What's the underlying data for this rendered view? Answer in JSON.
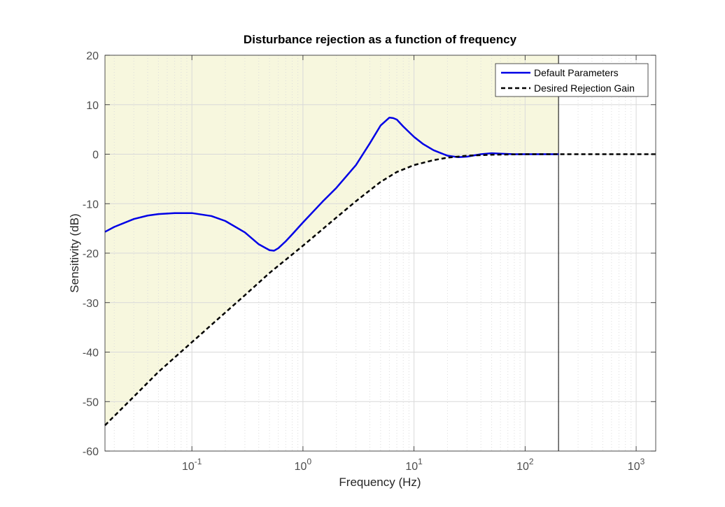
{
  "chart_data": {
    "type": "line",
    "title": "Disturbance rejection as a function of frequency",
    "xlabel": "Frequency (Hz)",
    "ylabel": "Sensitivity (dB)",
    "xscale": "log",
    "xlim": [
      0.0165,
      1500
    ],
    "ylim": [
      -60,
      20
    ],
    "yticks": [
      20,
      10,
      0,
      -10,
      -20,
      -30,
      -40,
      -50,
      -60
    ],
    "xticks": [
      {
        "value": 0.1,
        "base": "10",
        "exp": "-1"
      },
      {
        "value": 1,
        "base": "10",
        "exp": "0"
      },
      {
        "value": 10,
        "base": "10",
        "exp": "1"
      },
      {
        "value": 100,
        "base": "10",
        "exp": "2"
      },
      {
        "value": 1000,
        "base": "10",
        "exp": "3"
      }
    ],
    "grid": true,
    "legend_location": "top-right",
    "shaded_region": {
      "x_from": 0.0165,
      "x_to": 200,
      "color": "#f7f7de",
      "boundary": "Desired Rejection Gain"
    },
    "vertical_line": {
      "x": 200,
      "color": "#000000"
    },
    "series": [
      {
        "name": "Default Parameters",
        "color": "#0000e6",
        "style": "solid",
        "points": [
          [
            0.0165,
            -15.7
          ],
          [
            0.02,
            -14.7
          ],
          [
            0.03,
            -13.1
          ],
          [
            0.04,
            -12.4
          ],
          [
            0.05,
            -12.1
          ],
          [
            0.07,
            -11.9
          ],
          [
            0.1,
            -11.9
          ],
          [
            0.15,
            -12.5
          ],
          [
            0.2,
            -13.5
          ],
          [
            0.3,
            -15.8
          ],
          [
            0.4,
            -18.2
          ],
          [
            0.5,
            -19.4
          ],
          [
            0.55,
            -19.5
          ],
          [
            0.6,
            -19.0
          ],
          [
            0.7,
            -17.6
          ],
          [
            0.8,
            -16.2
          ],
          [
            1.0,
            -13.8
          ],
          [
            1.5,
            -9.6
          ],
          [
            2.0,
            -6.8
          ],
          [
            3.0,
            -2.2
          ],
          [
            4.0,
            2.2
          ],
          [
            5.0,
            5.8
          ],
          [
            6.0,
            7.4
          ],
          [
            6.5,
            7.3
          ],
          [
            7.0,
            7.0
          ],
          [
            8.0,
            5.6
          ],
          [
            10.0,
            3.5
          ],
          [
            12.0,
            2.1
          ],
          [
            15.0,
            0.8
          ],
          [
            20.0,
            -0.3
          ],
          [
            25.0,
            -0.6
          ],
          [
            30.0,
            -0.5
          ],
          [
            40.0,
            0.0
          ],
          [
            50.0,
            0.2
          ],
          [
            60.0,
            0.1
          ],
          [
            80.0,
            0.0
          ],
          [
            100.0,
            0.0
          ],
          [
            200.0,
            0.0
          ]
        ]
      },
      {
        "name": "Desired Rejection Gain",
        "color": "#000000",
        "style": "dashed",
        "points": [
          [
            0.0165,
            -54.8
          ],
          [
            0.03,
            -49.0
          ],
          [
            0.05,
            -44.0
          ],
          [
            0.1,
            -38.0
          ],
          [
            0.2,
            -32.0
          ],
          [
            0.3,
            -28.5
          ],
          [
            0.5,
            -24.0
          ],
          [
            1.0,
            -18.5
          ],
          [
            2.0,
            -12.8
          ],
          [
            3.0,
            -9.5
          ],
          [
            5.0,
            -5.6
          ],
          [
            7.0,
            -3.6
          ],
          [
            10.0,
            -2.2
          ],
          [
            15.0,
            -1.2
          ],
          [
            20.0,
            -0.7
          ],
          [
            30.0,
            -0.3
          ],
          [
            50.0,
            -0.1
          ],
          [
            100.0,
            0.0
          ],
          [
            200.0,
            0.0
          ],
          [
            500.0,
            0.0
          ],
          [
            1500.0,
            0.0
          ]
        ]
      }
    ]
  }
}
